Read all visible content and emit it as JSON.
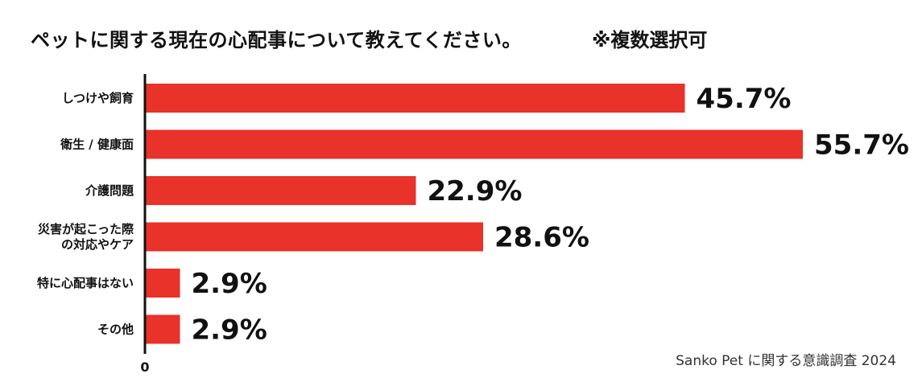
{
  "header": {
    "title": "ペットに関する現在の心配事について教えてください。",
    "note": "※複数選択可"
  },
  "footer": {
    "source": "Sanko Pet に関する意識調査 2024"
  },
  "colors": {
    "bar": "#e8322a",
    "axis": "#111111"
  },
  "chart_data": {
    "type": "bar",
    "orientation": "horizontal",
    "categories": [
      [
        "しつけや飼育"
      ],
      [
        "衛生 / 健康面"
      ],
      [
        "介護問題"
      ],
      [
        "災害が起こった際",
        "の対応やケア"
      ],
      [
        "特に心配事はない"
      ],
      [
        "その他"
      ]
    ],
    "values": [
      45.7,
      55.7,
      22.9,
      28.6,
      2.9,
      2.9
    ],
    "value_labels": [
      "45.7%",
      "55.7%",
      "22.9%",
      "28.6%",
      "2.9%",
      "2.9%"
    ],
    "xlim": [
      0,
      55.7
    ],
    "x_tick_label": "0",
    "grid": false,
    "legend": "none"
  }
}
